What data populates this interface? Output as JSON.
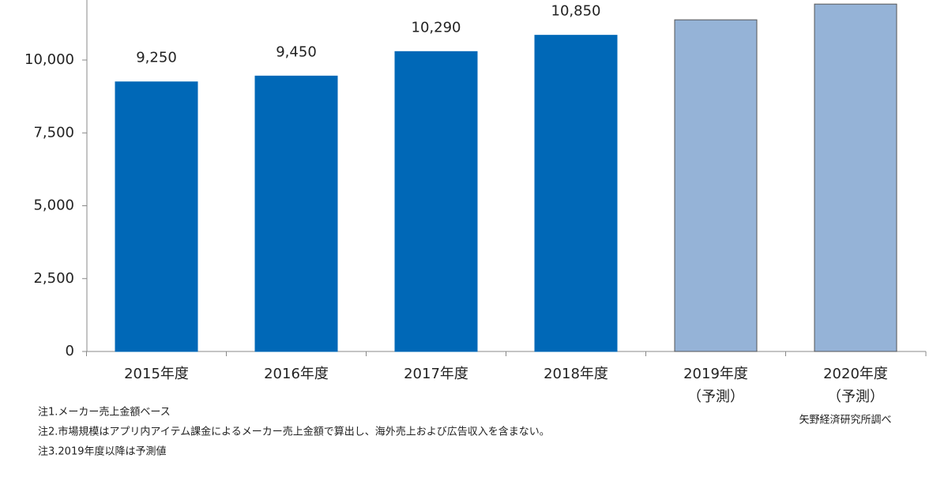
{
  "chart_data": {
    "type": "bar",
    "categories": [
      "2015年度",
      "2016年度",
      "2017年度",
      "2018年度",
      "2019年度",
      "2020年度"
    ],
    "category_notes": [
      null,
      null,
      null,
      null,
      "（予測）",
      "（予測）"
    ],
    "values": [
      9250,
      9450,
      10290,
      10850,
      11380,
      11920
    ],
    "value_labels": [
      "9,250",
      "9,450",
      "10,290",
      "10,850",
      null,
      null
    ],
    "colors": [
      "#0068b7",
      "#0068b7",
      "#0068b7",
      "#0068b7",
      "#95b3d7",
      "#95b3d7"
    ],
    "ylim": [
      0,
      12060
    ],
    "yticks": [
      0,
      {
        "value": 2500,
        "label": "2,500"
      },
      {
        "value": 5000,
        "label": "5,000"
      },
      {
        "value": 7500,
        "label": "7,500"
      },
      {
        "value": 10000,
        "label": "10,000"
      }
    ],
    "grid": false,
    "notes": [
      "注1.メーカー売上金額ベース",
      "注2.市場規模はアプリ内アイテム課金によるメーカー売上金額で算出し、海外売上および広告収入を含まない。",
      "注3.2019年度以降は予測値"
    ],
    "source": "矢野経済研究所調べ"
  }
}
